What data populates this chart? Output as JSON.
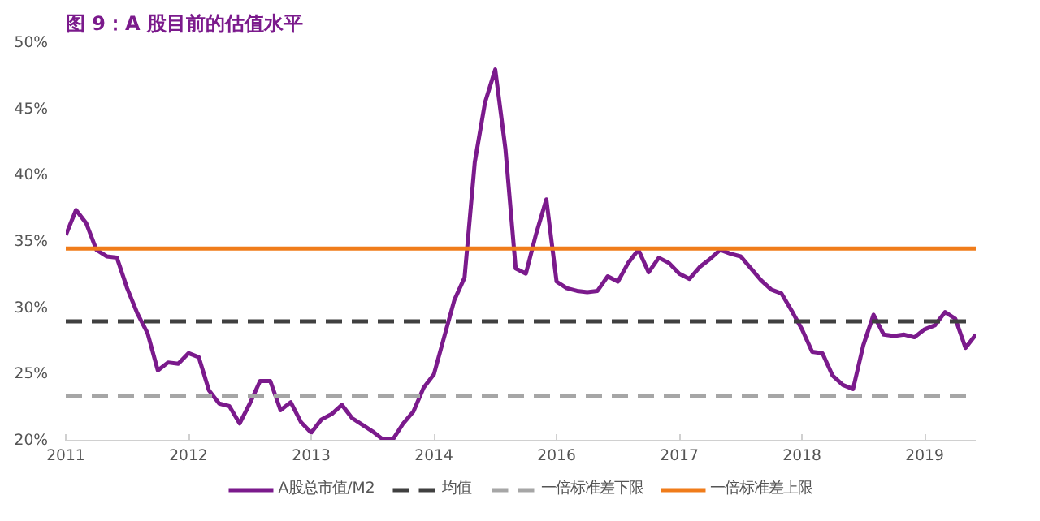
{
  "chart_data": {
    "type": "line",
    "title": "图 9：A 股目前的估值水平",
    "categories": [
      "2011",
      null,
      null,
      null,
      null,
      null,
      null,
      null,
      null,
      null,
      null,
      null,
      "2012",
      null,
      null,
      null,
      null,
      null,
      null,
      null,
      null,
      null,
      null,
      null,
      "2013",
      null,
      null,
      null,
      null,
      null,
      null,
      null,
      null,
      null,
      null,
      null,
      "2014",
      null,
      null,
      null,
      null,
      null,
      null,
      null,
      null,
      null,
      null,
      null,
      "2016",
      null,
      null,
      null,
      null,
      null,
      null,
      null,
      null,
      null,
      null,
      null,
      "2017",
      null,
      null,
      null,
      null,
      null,
      null,
      null,
      null,
      null,
      null,
      null,
      "2018",
      null,
      null,
      null,
      null,
      null,
      null,
      null,
      null,
      null,
      null,
      null,
      "2019",
      null,
      null,
      null,
      null,
      null
    ],
    "series": [
      {
        "name": "A股总市值/M2",
        "color": "#7b1a8c",
        "values": [
          35.5,
          37.4,
          36.4,
          34.4,
          33.9,
          33.8,
          31.5,
          29.6,
          28.1,
          25.3,
          25.9,
          25.8,
          26.6,
          26.3,
          23.8,
          22.8,
          22.6,
          21.3,
          22.8,
          24.5,
          24.5,
          22.3,
          22.9,
          21.4,
          20.6,
          21.6,
          22.0,
          22.7,
          21.7,
          21.2,
          20.7,
          20.1,
          20.1,
          21.3,
          22.2,
          24.0,
          25.0,
          27.8,
          30.6,
          32.3,
          41.0,
          45.5,
          48.0,
          42.0,
          33.0,
          32.6,
          35.6,
          38.2,
          32.0,
          31.5,
          31.3,
          31.2,
          31.3,
          32.4,
          32.0,
          33.4,
          34.4,
          32.7,
          33.8,
          33.4,
          32.6,
          32.2,
          33.1,
          33.7,
          34.4,
          34.1,
          33.9,
          33.0,
          32.1,
          31.4,
          31.1,
          29.8,
          28.4,
          26.7,
          26.6,
          24.9,
          24.2,
          23.9,
          27.2,
          29.5,
          28.0,
          27.9,
          28.0,
          27.8,
          28.4,
          28.7,
          29.7,
          29.2,
          27.0,
          28.0
        ]
      }
    ],
    "ref_lines": [
      {
        "axis": "y",
        "value": 29.0,
        "label": "均值",
        "color": "#404040",
        "line_style": "dashed"
      },
      {
        "axis": "y",
        "value": 23.4,
        "label": "一倍标准差下限",
        "color": "#a6a6a6",
        "line_style": "dashed"
      },
      {
        "axis": "y",
        "value": 34.5,
        "label": "一倍标准差上限",
        "color": "#f07c1a",
        "line_style": "solid"
      }
    ],
    "ylim": [
      20,
      50
    ],
    "yticks": [
      {
        "value": 20,
        "label": "20%"
      },
      {
        "value": 25,
        "label": "25%"
      },
      {
        "value": 30,
        "label": "30%"
      },
      {
        "value": 35,
        "label": "35%"
      },
      {
        "value": 40,
        "label": "40%"
      },
      {
        "value": 45,
        "label": "45%"
      },
      {
        "value": 50,
        "label": "50%"
      }
    ],
    "grid": false,
    "legend": "bottom",
    "line_style": "solid"
  }
}
